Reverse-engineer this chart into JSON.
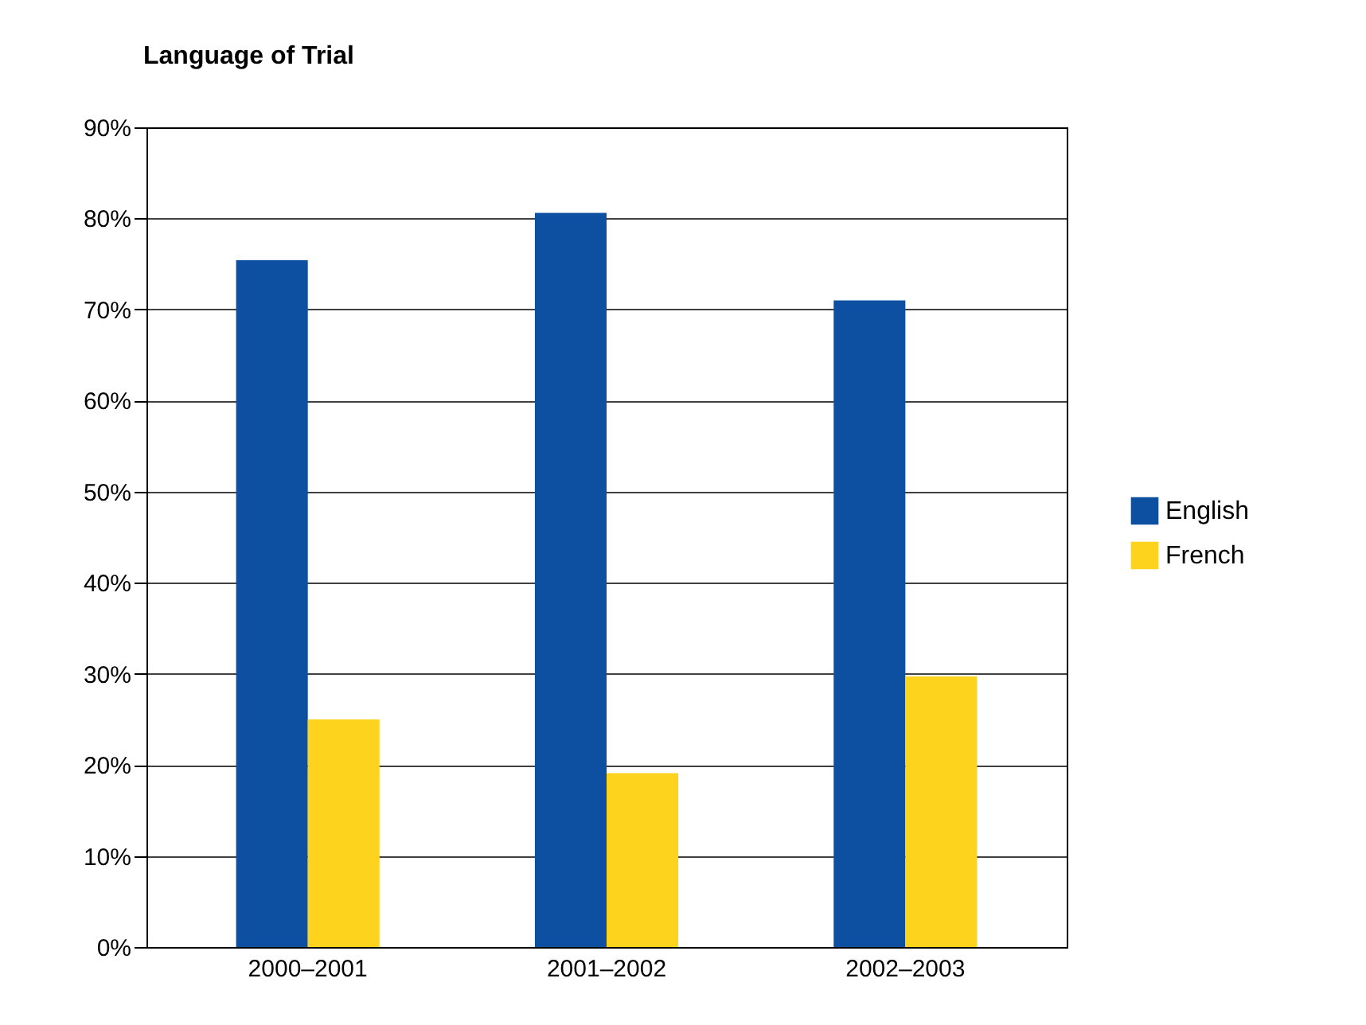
{
  "chart_data": {
    "type": "bar",
    "title": "Language of Trial",
    "categories": [
      "2000–2001",
      "2001–2002",
      "2002–2003"
    ],
    "series": [
      {
        "name": "English",
        "color": "#0d4fa0",
        "values": [
          75.4,
          80.6,
          71.0
        ]
      },
      {
        "name": "French",
        "color": "#fdd31d",
        "values": [
          25.0,
          19.1,
          29.7
        ]
      }
    ],
    "ylim": [
      0,
      90
    ],
    "yticks": [
      {
        "value": 0,
        "label": "0%"
      },
      {
        "value": 10,
        "label": "10%"
      },
      {
        "value": 20,
        "label": "20%"
      },
      {
        "value": 30,
        "label": "30%"
      },
      {
        "value": 40,
        "label": "40%"
      },
      {
        "value": 50,
        "label": "50%"
      },
      {
        "value": 60,
        "label": "60%"
      },
      {
        "value": 70,
        "label": "70%"
      },
      {
        "value": 80,
        "label": "80%"
      },
      {
        "value": 90,
        "label": "90%"
      }
    ],
    "grid": "y",
    "legend": "right"
  }
}
